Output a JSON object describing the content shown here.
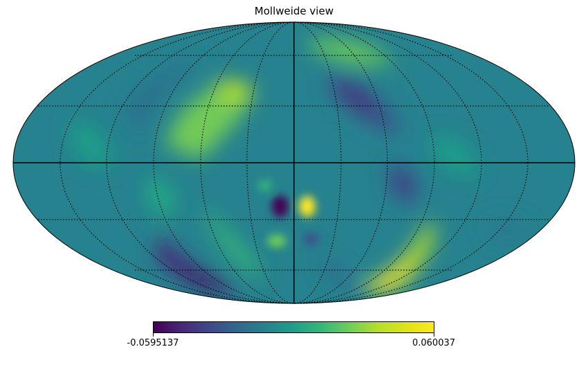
{
  "title": "Mollweide view",
  "projection": "mollweide",
  "colormap": "viridis",
  "colorbar": {
    "min_label": "-0.0595137",
    "max_label": "0.060037"
  },
  "graticule": {
    "meridian_step_deg": 30,
    "parallel_step_deg": 30,
    "style": "dotted"
  },
  "map_features": [
    {
      "name": "center-blue-spot",
      "value": -0.058
    },
    {
      "name": "center-yellow-spot",
      "value": 0.06
    },
    {
      "name": "lower-right-yellow-arc",
      "value": 0.06
    },
    {
      "name": "lower-left-dark-arc",
      "value": -0.0595
    },
    {
      "name": "upper-left-green-arc",
      "value": 0.035
    },
    {
      "name": "upper-right-blue-arc",
      "value": -0.035
    }
  ]
}
